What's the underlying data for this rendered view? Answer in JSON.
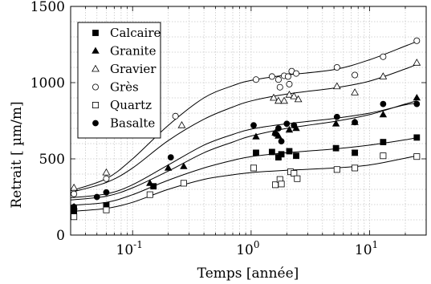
{
  "chart_data": {
    "type": "scatter",
    "xlabel": "Temps [année]",
    "ylabel": "Retrait [ µm/m]",
    "xscale": "log",
    "xlim": [
      0.03,
      30
    ],
    "ylim": [
      0,
      1500
    ],
    "grid": "minor dotted",
    "legend_position": "top-left",
    "x_ticks": [
      {
        "value": 0.1,
        "base": "10",
        "exp": "-1"
      },
      {
        "value": 1,
        "base": "10",
        "exp": "0"
      },
      {
        "value": 10,
        "base": "10",
        "exp": "1"
      }
    ],
    "y_ticks": [
      {
        "value": 0,
        "label": "0"
      },
      {
        "value": 500,
        "label": "500"
      },
      {
        "value": 1000,
        "label": "1000"
      },
      {
        "value": 1500,
        "label": "1500"
      }
    ],
    "series": [
      {
        "name": "Calcaire",
        "marker": "square-filled",
        "points": [
          [
            0.032,
            160
          ],
          [
            0.06,
            195
          ],
          [
            0.15,
            320
          ],
          [
            1.1,
            540
          ],
          [
            1.5,
            545
          ],
          [
            1.7,
            510
          ],
          [
            1.8,
            530
          ],
          [
            2.1,
            550
          ],
          [
            2.4,
            520
          ],
          [
            5.2,
            570
          ],
          [
            7.5,
            540
          ],
          [
            13,
            610
          ],
          [
            25,
            640
          ]
        ],
        "fit": [
          [
            0.03,
            195
          ],
          [
            0.06,
            215
          ],
          [
            0.1,
            265
          ],
          [
            0.2,
            360
          ],
          [
            0.4,
            440
          ],
          [
            0.7,
            490
          ],
          [
            1,
            515
          ],
          [
            2,
            540
          ],
          [
            5,
            565
          ],
          [
            10,
            590
          ],
          [
            20,
            625
          ],
          [
            25,
            640
          ]
        ]
      },
      {
        "name": "Granite",
        "marker": "triangle-filled",
        "points": [
          [
            0.032,
            185
          ],
          [
            0.14,
            340
          ],
          [
            0.2,
            440
          ],
          [
            0.27,
            450
          ],
          [
            1.1,
            645
          ],
          [
            1.6,
            670
          ],
          [
            1.7,
            650
          ],
          [
            2.1,
            690
          ],
          [
            2.4,
            700
          ],
          [
            5.2,
            730
          ],
          [
            7.5,
            740
          ],
          [
            13,
            790
          ],
          [
            25,
            900
          ]
        ],
        "fit": [
          [
            0.03,
            230
          ],
          [
            0.06,
            255
          ],
          [
            0.1,
            310
          ],
          [
            0.2,
            420
          ],
          [
            0.4,
            540
          ],
          [
            0.7,
            610
          ],
          [
            1,
            650
          ],
          [
            2,
            700
          ],
          [
            5,
            745
          ],
          [
            10,
            790
          ],
          [
            20,
            860
          ],
          [
            25,
            880
          ]
        ]
      },
      {
        "name": "Gravier",
        "marker": "triangle-open",
        "points": [
          [
            0.032,
            310
          ],
          [
            0.06,
            410
          ],
          [
            0.26,
            720
          ],
          [
            1.55,
            900
          ],
          [
            1.7,
            880
          ],
          [
            1.9,
            880
          ],
          [
            2.1,
            920
          ],
          [
            2.3,
            910
          ],
          [
            2.5,
            890
          ],
          [
            5.3,
            975
          ],
          [
            7.5,
            935
          ],
          [
            13,
            1040
          ],
          [
            25,
            1130
          ]
        ],
        "fit": [
          [
            0.03,
            280
          ],
          [
            0.06,
            345
          ],
          [
            0.1,
            440
          ],
          [
            0.2,
            620
          ],
          [
            0.4,
            760
          ],
          [
            0.7,
            840
          ],
          [
            1,
            880
          ],
          [
            2,
            925
          ],
          [
            5,
            965
          ],
          [
            10,
            1010
          ],
          [
            20,
            1090
          ],
          [
            25,
            1120
          ]
        ]
      },
      {
        "name": "Grès",
        "marker": "circle-open",
        "points": [
          [
            0.032,
            270
          ],
          [
            0.06,
            370
          ],
          [
            0.15,
            665
          ],
          [
            0.23,
            780
          ],
          [
            1.1,
            1020
          ],
          [
            1.5,
            1040
          ],
          [
            1.7,
            1020
          ],
          [
            1.75,
            970
          ],
          [
            1.9,
            1045
          ],
          [
            2.05,
            1040
          ],
          [
            2.1,
            990
          ],
          [
            2.2,
            1075
          ],
          [
            2.4,
            1060
          ],
          [
            5.3,
            1100
          ],
          [
            7.5,
            1050
          ],
          [
            13,
            1170
          ],
          [
            25,
            1275
          ]
        ],
        "fit": [
          [
            0.03,
            290
          ],
          [
            0.06,
            370
          ],
          [
            0.1,
            500
          ],
          [
            0.2,
            720
          ],
          [
            0.4,
            900
          ],
          [
            0.7,
            980
          ],
          [
            1,
            1015
          ],
          [
            2,
            1050
          ],
          [
            5,
            1085
          ],
          [
            10,
            1150
          ],
          [
            20,
            1240
          ],
          [
            25,
            1270
          ]
        ]
      },
      {
        "name": "Quartz",
        "marker": "square-open",
        "points": [
          [
            0.032,
            120
          ],
          [
            0.06,
            165
          ],
          [
            0.14,
            265
          ],
          [
            0.27,
            340
          ],
          [
            1.05,
            440
          ],
          [
            1.6,
            330
          ],
          [
            1.75,
            365
          ],
          [
            1.8,
            335
          ],
          [
            2.15,
            415
          ],
          [
            2.3,
            405
          ],
          [
            2.45,
            370
          ],
          [
            5.3,
            430
          ],
          [
            7.5,
            440
          ],
          [
            13,
            520
          ],
          [
            25,
            515
          ]
        ],
        "fit": [
          [
            0.03,
            155
          ],
          [
            0.06,
            175
          ],
          [
            0.1,
            215
          ],
          [
            0.2,
            300
          ],
          [
            0.4,
            365
          ],
          [
            0.7,
            395
          ],
          [
            1,
            410
          ],
          [
            2,
            425
          ],
          [
            5,
            440
          ],
          [
            10,
            460
          ],
          [
            20,
            505
          ],
          [
            25,
            520
          ]
        ]
      },
      {
        "name": "Basalte",
        "marker": "circle-filled",
        "points": [
          [
            0.032,
            185
          ],
          [
            0.05,
            250
          ],
          [
            0.06,
            280
          ],
          [
            0.21,
            510
          ],
          [
            1.05,
            720
          ],
          [
            1.6,
            665
          ],
          [
            1.7,
            700
          ],
          [
            1.8,
            615
          ],
          [
            2.0,
            730
          ],
          [
            2.3,
            720
          ],
          [
            5.3,
            775
          ],
          [
            7.5,
            740
          ],
          [
            13,
            860
          ],
          [
            25,
            860
          ]
        ],
        "fit": [
          [
            0.03,
            245
          ],
          [
            0.06,
            270
          ],
          [
            0.1,
            330
          ],
          [
            0.2,
            460
          ],
          [
            0.4,
            590
          ],
          [
            0.7,
            660
          ],
          [
            1,
            695
          ],
          [
            2,
            730
          ],
          [
            5,
            765
          ],
          [
            10,
            800
          ],
          [
            20,
            855
          ],
          [
            25,
            865
          ]
        ]
      }
    ]
  }
}
